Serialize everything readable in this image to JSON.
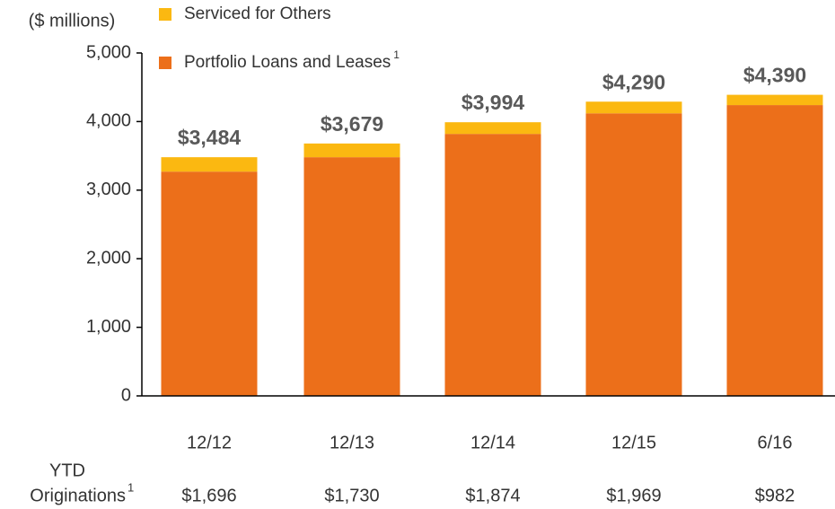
{
  "chart_data": {
    "type": "stacked_bar",
    "axis_label": "($ millions)",
    "categories": [
      "12/12",
      "12/13",
      "12/14",
      "12/15",
      "6/16"
    ],
    "series": [
      {
        "name": "Portfolio Loans and Leases",
        "color": "#ec6f1a",
        "values": [
          3270,
          3480,
          3820,
          4120,
          4240
        ]
      },
      {
        "name": "Serviced for Others",
        "color": "#fbb811",
        "values": [
          210,
          200,
          170,
          170,
          150
        ]
      }
    ],
    "legend_note": "1",
    "totals": [
      3484,
      3679,
      3994,
      4290,
      4390
    ],
    "total_labels": [
      "$3,484",
      "$3,679",
      "$3,994",
      "$4,290",
      "$4,390"
    ],
    "ylim": [
      0,
      5000
    ],
    "yticks": [
      0,
      {
        "value": 1000,
        "label": "1,000"
      },
      {
        "value": 2000,
        "label": "2,000"
      },
      {
        "value": 3000,
        "label": "3,000"
      },
      {
        "value": 4000,
        "label": "4,000"
      },
      {
        "value": 5000,
        "label": "5,000"
      }
    ],
    "originations": {
      "label_line1": "YTD",
      "label_line2": "Originations",
      "note": "1",
      "labels": [
        "$1,696",
        "$1,730",
        "$1,874",
        "$1,969",
        "$982"
      ]
    }
  }
}
